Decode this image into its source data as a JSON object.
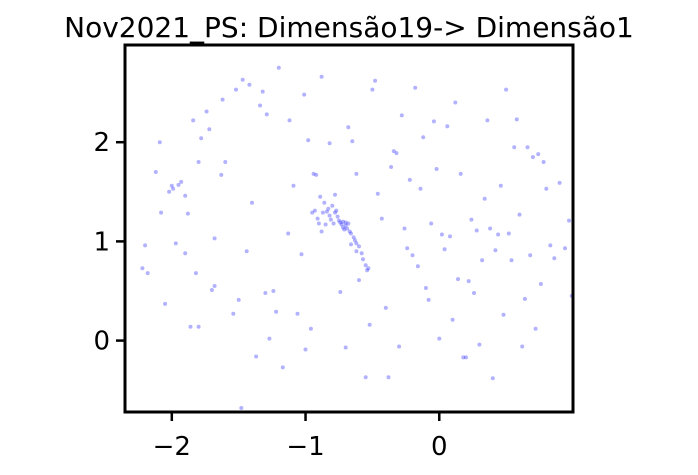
{
  "chart_data": {
    "type": "scatter",
    "title": "Nov2021_PS: Dimensão19-> Dimensão1",
    "xlabel": "",
    "ylabel": "",
    "xlim": [
      -2.35,
      1.0
    ],
    "ylim": [
      -0.72,
      2.98
    ],
    "x_ticks": [
      {
        "value": -2,
        "label": "−2"
      },
      {
        "value": -1,
        "label": "−1"
      },
      {
        "value": 0,
        "label": "0"
      }
    ],
    "y_ticks": [
      {
        "value": 0,
        "label": "0"
      },
      {
        "value": 1,
        "label": "1"
      },
      {
        "value": 2,
        "label": "2"
      }
    ],
    "grid": false,
    "legend": "none",
    "point_color": "#0000ff",
    "point_alpha": 0.3,
    "points": [
      [
        -2.22,
        0.73
      ],
      [
        -2.2,
        0.96
      ],
      [
        -2.18,
        0.68
      ],
      [
        -2.12,
        1.7
      ],
      [
        -2.09,
        2.0
      ],
      [
        -2.08,
        1.29
      ],
      [
        -2.05,
        0.37
      ],
      [
        -2.02,
        1.5
      ],
      [
        -2.0,
        1.56
      ],
      [
        -1.99,
        1.53
      ],
      [
        -1.97,
        0.98
      ],
      [
        -1.95,
        1.57
      ],
      [
        -1.93,
        1.6
      ],
      [
        -1.9,
        0.88
      ],
      [
        -1.9,
        1.46
      ],
      [
        -1.88,
        1.28
      ],
      [
        -1.86,
        0.14
      ],
      [
        -1.84,
        2.22
      ],
      [
        -1.82,
        0.68
      ],
      [
        -1.8,
        1.8
      ],
      [
        -1.8,
        0.14
      ],
      [
        -1.78,
        2.04
      ],
      [
        -1.74,
        2.31
      ],
      [
        -1.72,
        2.13
      ],
      [
        -1.7,
        0.51
      ],
      [
        -1.68,
        0.55
      ],
      [
        -1.68,
        1.03
      ],
      [
        -1.63,
        1.67
      ],
      [
        -1.62,
        2.43
      ],
      [
        -1.6,
        1.8
      ],
      [
        -1.54,
        0.27
      ],
      [
        -1.52,
        2.53
      ],
      [
        -1.5,
        0.41
      ],
      [
        -1.48,
        -0.68
      ],
      [
        -1.47,
        2.63
      ],
      [
        -1.44,
        0.9
      ],
      [
        -1.42,
        2.58
      ],
      [
        -1.4,
        1.39
      ],
      [
        -1.37,
        -0.16
      ],
      [
        -1.34,
        2.37
      ],
      [
        -1.32,
        2.51
      ],
      [
        -1.3,
        0.48
      ],
      [
        -1.29,
        2.28
      ],
      [
        -1.27,
        0.02
      ],
      [
        -1.24,
        0.5
      ],
      [
        -1.22,
        0.29
      ],
      [
        -1.2,
        2.75
      ],
      [
        -1.17,
        -0.27
      ],
      [
        -1.13,
        1.08
      ],
      [
        -1.12,
        2.22
      ],
      [
        -1.09,
        1.56
      ],
      [
        -1.06,
        0.27
      ],
      [
        -1.03,
        0.87
      ],
      [
        -1.01,
        2.48
      ],
      [
        -1.0,
        -0.09
      ],
      [
        -0.98,
        2.02
      ],
      [
        -0.96,
        0.12
      ],
      [
        -0.94,
        1.68
      ],
      [
        -0.92,
        1.67
      ],
      [
        -0.91,
        1.23
      ],
      [
        -0.89,
        1.45
      ],
      [
        -0.88,
        2.66
      ],
      [
        -0.87,
        1.29
      ],
      [
        -0.86,
        1.39
      ],
      [
        -0.85,
        1.17
      ],
      [
        -0.84,
        1.3
      ],
      [
        -0.83,
        1.33
      ],
      [
        -0.82,
        1.26
      ],
      [
        -0.81,
        1.22
      ],
      [
        -0.8,
        1.36
      ],
      [
        -0.79,
        1.18
      ],
      [
        -0.78,
        1.29
      ],
      [
        -0.77,
        1.31
      ],
      [
        -0.76,
        1.25
      ],
      [
        -0.75,
        1.21
      ],
      [
        -0.74,
        1.19
      ],
      [
        -0.73,
        1.17
      ],
      [
        -0.72,
        1.14
      ],
      [
        -0.71,
        1.12
      ],
      [
        -0.7,
        1.16
      ],
      [
        -0.69,
        1.13
      ],
      [
        -0.7,
        1.19
      ],
      [
        -0.72,
        1.2
      ],
      [
        -0.68,
        1.18
      ],
      [
        -0.67,
        1.1
      ],
      [
        -0.66,
        1.08
      ],
      [
        -0.64,
        1.04
      ],
      [
        -0.63,
        1.01
      ],
      [
        -0.62,
        0.98
      ],
      [
        -0.6,
        0.95
      ],
      [
        -0.58,
        0.88
      ],
      [
        -0.57,
        0.82
      ],
      [
        -0.55,
        0.76
      ],
      [
        -0.54,
        0.71
      ],
      [
        -0.53,
        0.73
      ],
      [
        -0.82,
        1.99
      ],
      [
        -0.78,
        1.47
      ],
      [
        -0.74,
        0.49
      ],
      [
        -0.7,
        -0.07
      ],
      [
        -0.68,
        2.15
      ],
      [
        -0.65,
        2.01
      ],
      [
        -0.62,
        1.68
      ],
      [
        -0.6,
        0.61
      ],
      [
        -0.55,
        -0.37
      ],
      [
        -0.52,
        0.16
      ],
      [
        -0.5,
        2.53
      ],
      [
        -0.48,
        2.62
      ],
      [
        -0.46,
        1.48
      ],
      [
        -0.43,
        1.23
      ],
      [
        -0.4,
        0.33
      ],
      [
        -0.38,
        -0.37
      ],
      [
        -0.36,
        1.75
      ],
      [
        -0.34,
        1.91
      ],
      [
        -0.32,
        1.89
      ],
      [
        -0.3,
        -0.06
      ],
      [
        -0.28,
        2.27
      ],
      [
        -0.26,
        1.13
      ],
      [
        -0.24,
        0.93
      ],
      [
        -0.22,
        1.62
      ],
      [
        -0.2,
        0.86
      ],
      [
        -0.18,
        2.55
      ],
      [
        -0.16,
        0.75
      ],
      [
        -0.14,
        1.53
      ],
      [
        -0.12,
        2.05
      ],
      [
        -0.1,
        0.53
      ],
      [
        -0.08,
        0.41
      ],
      [
        -0.06,
        1.18
      ],
      [
        -0.04,
        2.21
      ],
      [
        -0.02,
        1.73
      ],
      [
        0.0,
        0.02
      ],
      [
        0.02,
        1.07
      ],
      [
        0.04,
        0.92
      ],
      [
        0.06,
        2.16
      ],
      [
        0.08,
        1.05
      ],
      [
        0.1,
        0.21
      ],
      [
        0.12,
        2.4
      ],
      [
        0.14,
        0.62
      ],
      [
        0.16,
        1.68
      ],
      [
        0.18,
        -0.17
      ],
      [
        0.2,
        -0.17
      ],
      [
        0.22,
        0.6
      ],
      [
        0.24,
        1.22
      ],
      [
        0.26,
        0.48
      ],
      [
        0.28,
        1.11
      ],
      [
        0.3,
        -0.04
      ],
      [
        0.32,
        0.81
      ],
      [
        0.34,
        1.43
      ],
      [
        0.36,
        2.22
      ],
      [
        0.38,
        1.13
      ],
      [
        0.4,
        -0.38
      ],
      [
        0.42,
        0.91
      ],
      [
        0.44,
        1.07
      ],
      [
        0.46,
        1.56
      ],
      [
        0.48,
        0.26
      ],
      [
        0.5,
        2.53
      ],
      [
        0.52,
        1.08
      ],
      [
        0.54,
        0.81
      ],
      [
        0.56,
        1.95
      ],
      [
        0.58,
        2.23
      ],
      [
        0.6,
        1.27
      ],
      [
        0.62,
        -0.06
      ],
      [
        0.64,
        0.42
      ],
      [
        0.66,
        1.95
      ],
      [
        0.68,
        0.86
      ],
      [
        0.7,
        1.85
      ],
      [
        0.72,
        0.12
      ],
      [
        0.74,
        1.88
      ],
      [
        0.76,
        0.57
      ],
      [
        0.78,
        1.8
      ],
      [
        0.8,
        1.53
      ],
      [
        0.83,
        0.96
      ],
      [
        0.86,
        0.83
      ],
      [
        0.9,
        1.59
      ],
      [
        0.94,
        0.93
      ],
      [
        0.97,
        1.21
      ],
      [
        0.99,
        0.45
      ],
      [
        -0.9,
        1.18
      ],
      [
        -0.88,
        1.1
      ],
      [
        -0.66,
        0.97
      ],
      [
        -0.62,
        0.9
      ],
      [
        -0.93,
        1.31
      ],
      [
        -0.95,
        1.29
      ]
    ]
  }
}
